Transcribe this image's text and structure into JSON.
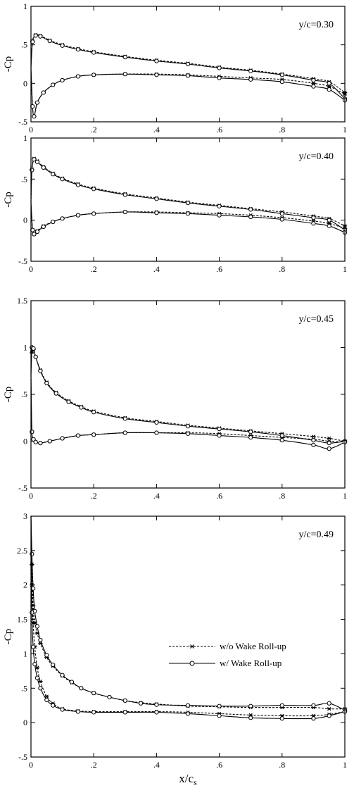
{
  "chart_data": [
    {
      "type": "line",
      "annotation": "y/c=0.30",
      "ylabel": "-Cp",
      "xlim": [
        0,
        1
      ],
      "ylim": [
        -0.5,
        1
      ],
      "xticks": [
        "0",
        ".2",
        ".4",
        ".6",
        ".8",
        "1"
      ],
      "yticks": [
        "-.5",
        "0",
        ".5",
        "1"
      ],
      "grid": false,
      "series": [
        {
          "style": "dashed-star",
          "surface": "upper",
          "x": [
            0,
            0.005,
            0.015,
            0.03,
            0.06,
            0.1,
            0.15,
            0.2,
            0.3,
            0.4,
            0.5,
            0.6,
            0.7,
            0.8,
            0.9,
            0.95,
            1.0
          ],
          "y": [
            0.2,
            0.55,
            0.63,
            0.62,
            0.56,
            0.5,
            0.45,
            0.41,
            0.35,
            0.3,
            0.26,
            0.21,
            0.17,
            0.12,
            0.06,
            0.02,
            -0.12
          ]
        },
        {
          "style": "dashed-star",
          "surface": "lower",
          "x": [
            0,
            0.005,
            0.01,
            0.02,
            0.04,
            0.07,
            0.1,
            0.15,
            0.2,
            0.3,
            0.4,
            0.5,
            0.6,
            0.7,
            0.8,
            0.9,
            0.95,
            1.0
          ],
          "y": [
            0.2,
            -0.3,
            -0.43,
            -0.25,
            -0.12,
            -0.02,
            0.04,
            0.09,
            0.11,
            0.12,
            0.12,
            0.11,
            0.09,
            0.07,
            0.05,
            0.0,
            -0.04,
            -0.14
          ]
        },
        {
          "style": "solid-circle",
          "surface": "upper",
          "x": [
            0,
            0.005,
            0.015,
            0.03,
            0.06,
            0.1,
            0.15,
            0.2,
            0.3,
            0.4,
            0.5,
            0.6,
            0.7,
            0.8,
            0.9,
            0.95,
            1.0
          ],
          "y": [
            0.2,
            0.54,
            0.62,
            0.61,
            0.55,
            0.49,
            0.44,
            0.4,
            0.34,
            0.29,
            0.25,
            0.2,
            0.16,
            0.11,
            0.04,
            0.0,
            -0.2
          ]
        },
        {
          "style": "solid-circle",
          "surface": "lower",
          "x": [
            0,
            0.005,
            0.01,
            0.02,
            0.04,
            0.07,
            0.1,
            0.15,
            0.2,
            0.3,
            0.4,
            0.5,
            0.6,
            0.7,
            0.8,
            0.9,
            0.95,
            1.0
          ],
          "y": [
            0.2,
            -0.3,
            -0.43,
            -0.25,
            -0.12,
            -0.02,
            0.04,
            0.09,
            0.11,
            0.12,
            0.11,
            0.1,
            0.07,
            0.05,
            0.02,
            -0.04,
            -0.08,
            -0.22
          ]
        }
      ]
    },
    {
      "type": "line",
      "annotation": "y/c=0.40",
      "ylabel": "-Cp",
      "xlim": [
        0,
        1
      ],
      "ylim": [
        -0.5,
        1
      ],
      "xticks": [
        "0",
        ".2",
        ".4",
        ".6",
        ".8",
        "1"
      ],
      "yticks": [
        "-.5",
        "0",
        ".5",
        "1"
      ],
      "grid": false,
      "series": [
        {
          "style": "dashed-star",
          "surface": "upper",
          "x": [
            0,
            0.003,
            0.01,
            0.02,
            0.04,
            0.07,
            0.1,
            0.15,
            0.2,
            0.3,
            0.4,
            0.5,
            0.6,
            0.7,
            0.8,
            0.9,
            0.95,
            1.0
          ],
          "y": [
            0.22,
            0.62,
            0.75,
            0.72,
            0.65,
            0.57,
            0.51,
            0.44,
            0.39,
            0.32,
            0.27,
            0.22,
            0.18,
            0.14,
            0.1,
            0.05,
            0.02,
            -0.07
          ]
        },
        {
          "style": "dashed-star",
          "surface": "lower",
          "x": [
            0,
            0.005,
            0.01,
            0.02,
            0.04,
            0.07,
            0.1,
            0.15,
            0.2,
            0.3,
            0.4,
            0.5,
            0.6,
            0.7,
            0.8,
            0.9,
            0.95,
            1.0
          ],
          "y": [
            0.22,
            -0.12,
            -0.17,
            -0.13,
            -0.07,
            -0.02,
            0.02,
            0.06,
            0.08,
            0.1,
            0.1,
            0.09,
            0.08,
            0.06,
            0.03,
            -0.01,
            -0.04,
            -0.1
          ]
        },
        {
          "style": "solid-circle",
          "surface": "upper",
          "x": [
            0,
            0.003,
            0.01,
            0.02,
            0.04,
            0.07,
            0.1,
            0.15,
            0.2,
            0.3,
            0.4,
            0.5,
            0.6,
            0.7,
            0.8,
            0.9,
            0.95,
            1.0
          ],
          "y": [
            0.22,
            0.61,
            0.74,
            0.71,
            0.64,
            0.56,
            0.5,
            0.43,
            0.38,
            0.31,
            0.26,
            0.21,
            0.17,
            0.13,
            0.08,
            0.03,
            0.0,
            -0.12
          ]
        },
        {
          "style": "solid-circle",
          "surface": "lower",
          "x": [
            0,
            0.005,
            0.01,
            0.02,
            0.04,
            0.07,
            0.1,
            0.15,
            0.2,
            0.3,
            0.4,
            0.5,
            0.6,
            0.7,
            0.8,
            0.9,
            0.95,
            1.0
          ],
          "y": [
            0.22,
            -0.12,
            -0.17,
            -0.14,
            -0.08,
            -0.02,
            0.02,
            0.06,
            0.08,
            0.1,
            0.09,
            0.08,
            0.06,
            0.04,
            0.01,
            -0.04,
            -0.07,
            -0.15
          ]
        }
      ]
    },
    {
      "type": "line",
      "annotation": "y/c=0.45",
      "ylabel": "-Cp",
      "xlim": [
        0,
        1
      ],
      "ylim": [
        -0.5,
        1.5
      ],
      "xticks": [
        "0",
        ".2",
        ".4",
        ".6",
        ".8",
        "1"
      ],
      "yticks": [
        "-.5",
        "0",
        ".5",
        "1",
        "1.5"
      ],
      "grid": false,
      "series": [
        {
          "style": "dashed-star",
          "surface": "upper",
          "x": [
            0,
            0.003,
            0.008,
            0.015,
            0.03,
            0.05,
            0.08,
            0.12,
            0.16,
            0.2,
            0.3,
            0.4,
            0.5,
            0.6,
            0.7,
            0.8,
            0.9,
            0.95,
            1.0
          ],
          "y": [
            0.7,
            0.95,
            0.98,
            0.9,
            0.76,
            0.63,
            0.52,
            0.43,
            0.37,
            0.32,
            0.25,
            0.21,
            0.17,
            0.14,
            0.11,
            0.08,
            0.05,
            0.03,
            0.0
          ]
        },
        {
          "style": "dashed-star",
          "surface": "lower",
          "x": [
            0,
            0.003,
            0.008,
            0.015,
            0.03,
            0.06,
            0.1,
            0.15,
            0.2,
            0.3,
            0.4,
            0.5,
            0.6,
            0.7,
            0.8,
            0.9,
            0.95,
            1.0
          ],
          "y": [
            0.7,
            0.1,
            0.02,
            -0.01,
            -0.02,
            0.0,
            0.03,
            0.06,
            0.07,
            0.09,
            0.09,
            0.09,
            0.08,
            0.06,
            0.04,
            0.02,
            0.0,
            -0.01
          ]
        },
        {
          "style": "solid-circle",
          "surface": "upper",
          "x": [
            0,
            0.003,
            0.008,
            0.015,
            0.03,
            0.05,
            0.08,
            0.12,
            0.16,
            0.2,
            0.3,
            0.4,
            0.5,
            0.6,
            0.7,
            0.8,
            0.9,
            0.95,
            1.0
          ],
          "y": [
            0.7,
            1.0,
            0.99,
            0.9,
            0.75,
            0.62,
            0.51,
            0.42,
            0.36,
            0.31,
            0.24,
            0.2,
            0.16,
            0.13,
            0.1,
            0.06,
            0.01,
            -0.02,
            0.0
          ]
        },
        {
          "style": "solid-circle",
          "surface": "lower",
          "x": [
            0,
            0.003,
            0.008,
            0.015,
            0.03,
            0.06,
            0.1,
            0.15,
            0.2,
            0.3,
            0.4,
            0.5,
            0.6,
            0.7,
            0.8,
            0.9,
            0.95,
            1.0
          ],
          "y": [
            0.7,
            0.1,
            0.02,
            -0.01,
            -0.02,
            0.0,
            0.03,
            0.06,
            0.07,
            0.09,
            0.09,
            0.08,
            0.06,
            0.04,
            0.01,
            -0.04,
            -0.08,
            -0.01
          ]
        }
      ]
    },
    {
      "type": "line",
      "annotation": "y/c=0.49",
      "ylabel": "-Cp",
      "xlabel": "x/c",
      "xlabel_subscript": "s",
      "xlim": [
        0,
        1
      ],
      "ylim": [
        -0.5,
        3
      ],
      "xticks": [
        "0",
        ".2",
        ".4",
        ".6",
        ".8",
        "1"
      ],
      "yticks": [
        "-.5",
        "0",
        ".5",
        "1",
        "1.5",
        "2",
        "2.5",
        "3"
      ],
      "grid": false,
      "legend": {
        "placement": "right",
        "entries": [
          {
            "label": "w/o Wake Roll-up",
            "style": "dashed-star"
          },
          {
            "label": "w/   Wake Roll-up",
            "style": "solid-circle"
          }
        ]
      },
      "series": [
        {
          "style": "dashed-star",
          "surface": "upper",
          "x": [
            0,
            0.003,
            0.007,
            0.012,
            0.02,
            0.03,
            0.05,
            0.07,
            0.1,
            0.13,
            0.16,
            0.2,
            0.25,
            0.3,
            0.35,
            0.4,
            0.5,
            0.6,
            0.7,
            0.8,
            0.9,
            0.95,
            1.0
          ],
          "y": [
            3.0,
            2.3,
            1.7,
            1.45,
            1.3,
            1.15,
            0.95,
            0.82,
            0.68,
            0.58,
            0.5,
            0.43,
            0.37,
            0.32,
            0.29,
            0.27,
            0.24,
            0.23,
            0.22,
            0.22,
            0.22,
            0.2,
            0.2
          ]
        },
        {
          "style": "dashed-star",
          "surface": "lower",
          "x": [
            0,
            0.003,
            0.007,
            0.012,
            0.02,
            0.03,
            0.05,
            0.07,
            0.1,
            0.15,
            0.2,
            0.3,
            0.4,
            0.5,
            0.6,
            0.7,
            0.8,
            0.9,
            0.95,
            1.0
          ],
          "y": [
            3.0,
            2.0,
            1.45,
            1.1,
            0.8,
            0.6,
            0.38,
            0.28,
            0.2,
            0.17,
            0.16,
            0.16,
            0.16,
            0.15,
            0.13,
            0.11,
            0.1,
            0.1,
            0.12,
            0.16
          ]
        },
        {
          "style": "solid-circle",
          "surface": "upper",
          "x": [
            0,
            0.003,
            0.007,
            0.012,
            0.02,
            0.03,
            0.05,
            0.07,
            0.1,
            0.13,
            0.16,
            0.2,
            0.25,
            0.3,
            0.35,
            0.4,
            0.5,
            0.6,
            0.7,
            0.8,
            0.9,
            0.95,
            1.0
          ],
          "y": [
            3.0,
            2.45,
            1.95,
            1.62,
            1.4,
            1.2,
            0.98,
            0.84,
            0.69,
            0.59,
            0.5,
            0.43,
            0.37,
            0.32,
            0.28,
            0.26,
            0.25,
            0.24,
            0.24,
            0.25,
            0.25,
            0.28,
            0.18
          ]
        },
        {
          "style": "solid-circle",
          "surface": "lower",
          "x": [
            0,
            0.003,
            0.007,
            0.012,
            0.02,
            0.03,
            0.05,
            0.07,
            0.1,
            0.15,
            0.2,
            0.3,
            0.4,
            0.5,
            0.6,
            0.7,
            0.8,
            0.9,
            0.95,
            1.0
          ],
          "y": [
            3.0,
            1.6,
            1.1,
            0.85,
            0.65,
            0.5,
            0.33,
            0.25,
            0.19,
            0.16,
            0.15,
            0.15,
            0.15,
            0.13,
            0.1,
            0.07,
            0.06,
            0.06,
            0.1,
            0.16
          ]
        }
      ]
    }
  ]
}
